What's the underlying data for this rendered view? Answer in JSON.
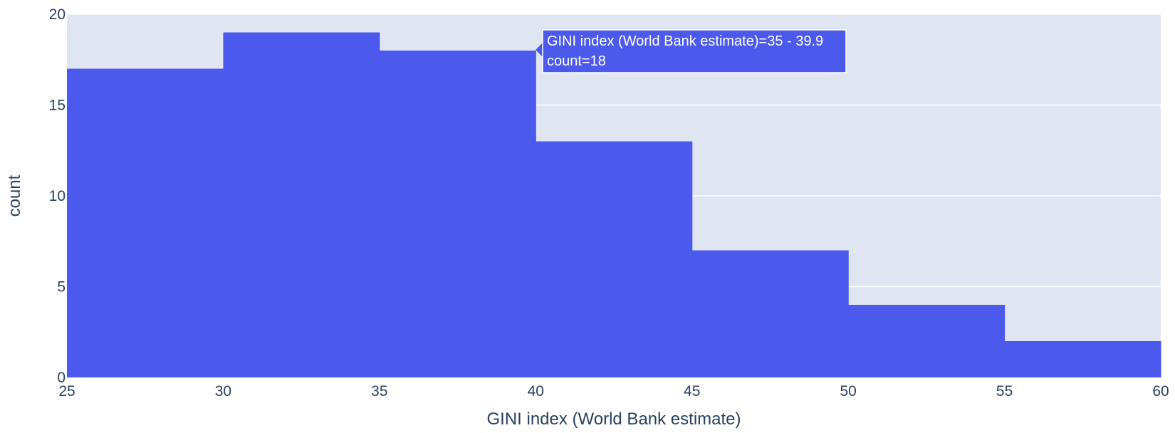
{
  "chart_data": {
    "type": "bar",
    "subtype": "histogram",
    "xlabel": "GINI index (World Bank estimate)",
    "ylabel": "count",
    "bins": [
      {
        "start": 25,
        "end": 30,
        "count": 17
      },
      {
        "start": 30,
        "end": 35,
        "count": 19
      },
      {
        "start": 35,
        "end": 40,
        "count": 18
      },
      {
        "start": 40,
        "end": 45,
        "count": 13
      },
      {
        "start": 45,
        "end": 50,
        "count": 7
      },
      {
        "start": 50,
        "end": 55,
        "count": 4
      },
      {
        "start": 55,
        "end": 60,
        "count": 2
      }
    ],
    "xlim": [
      25,
      60
    ],
    "ylim": [
      0,
      20
    ],
    "x_ticks": [
      "25",
      "30",
      "35",
      "40",
      "45",
      "50",
      "55",
      "60"
    ],
    "y_ticks": [
      "0",
      "5",
      "10",
      "15",
      "20"
    ],
    "grid": true,
    "colors": {
      "bar": "#4b5aec",
      "plot_background": "#e0e6f1",
      "grid": "#ffffff",
      "text": "#2a3f5f"
    },
    "tooltip": {
      "line1": "GINI index (World Bank estimate)=35 - 39.9",
      "line2": "count=18",
      "bin_index": 2
    }
  }
}
